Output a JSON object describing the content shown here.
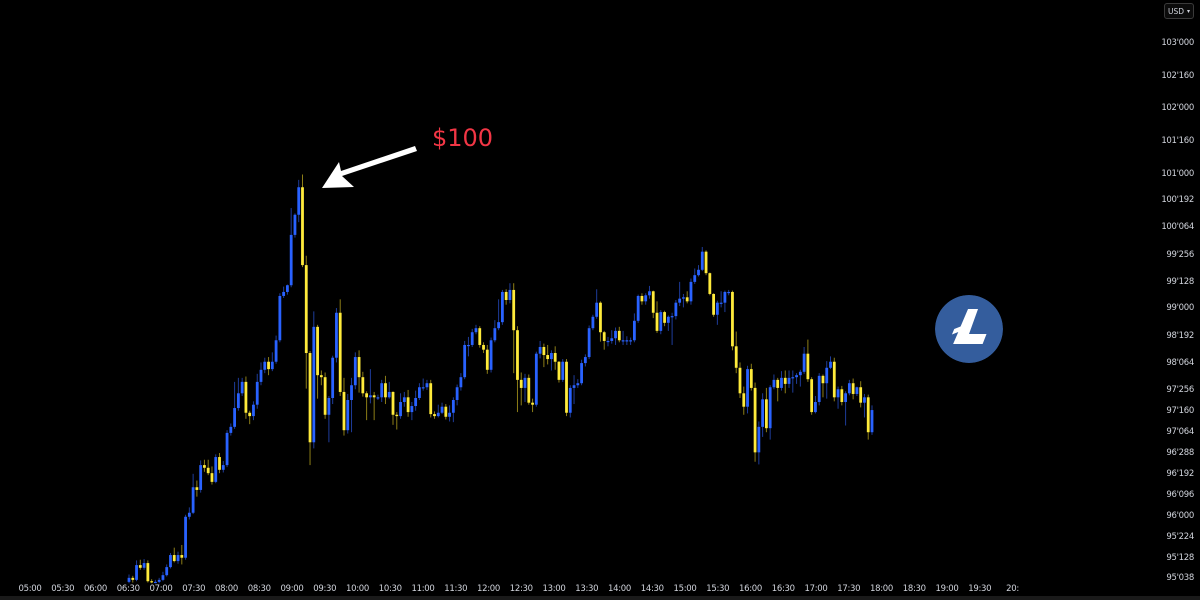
{
  "currency_selector": {
    "label": "USD",
    "icon": "chevron-down-icon"
  },
  "annotation": {
    "text": "$100",
    "color": "#f23645",
    "icon": "arrow-icon"
  },
  "logo": {
    "name": "litecoin-logo",
    "glyph": "Ł",
    "color": "#345d9d"
  },
  "colors": {
    "up": "#2962ff",
    "down": "#ffeb3b",
    "up_wick": "#1e3c9a",
    "down_wick": "#8c7d17",
    "background": "#000000",
    "text": "#d1d4dc"
  },
  "chart_data": {
    "type": "candlestick",
    "title": "",
    "xlabel": "",
    "ylabel": "",
    "grid": false,
    "ylim": [
      94900,
      103300
    ],
    "y_tick_labels": [
      "103'000",
      "102'160",
      "102'000",
      "101'160",
      "101'000",
      "100'192",
      "100'064",
      "99'256",
      "99'128",
      "99'000",
      "98'192",
      "98'064",
      "97'256",
      "97'160",
      "97'064",
      "96'288",
      "96'192",
      "96'096",
      "96'000",
      "95'224",
      "95'128",
      "95'038"
    ],
    "x_tick_labels": [
      "05:00",
      "05:30",
      "06:00",
      "06:30",
      "07:00",
      "07:30",
      "08:00",
      "08:30",
      "09:00",
      "09:30",
      "10:00",
      "10:30",
      "11:00",
      "11:30",
      "12:00",
      "12:30",
      "13:00",
      "13:30",
      "14:00",
      "14:30",
      "15:00",
      "15:30",
      "16:00",
      "16:30",
      "17:00",
      "17:30",
      "18:00",
      "18:30",
      "19:00",
      "19:30",
      "20:"
    ],
    "ohlc_fields": [
      "open",
      "high",
      "low",
      "close"
    ],
    "candles": [
      [
        94970,
        95080,
        94950,
        95030
      ],
      [
        95030,
        95060,
        94960,
        95000
      ],
      [
        95000,
        95290,
        94980,
        95220
      ],
      [
        95220,
        95300,
        95150,
        95180
      ],
      [
        95180,
        95310,
        95150,
        95250
      ],
      [
        95250,
        95290,
        94960,
        94980
      ],
      [
        94980,
        95010,
        94950,
        94970
      ],
      [
        94970,
        95000,
        94950,
        94970
      ],
      [
        94970,
        95030,
        94950,
        95000
      ],
      [
        95000,
        95120,
        94980,
        95070
      ],
      [
        95070,
        95230,
        95050,
        95190
      ],
      [
        95190,
        95400,
        95170,
        95370
      ],
      [
        95370,
        95480,
        95260,
        95280
      ],
      [
        95280,
        95420,
        95240,
        95370
      ],
      [
        95370,
        95520,
        95230,
        95330
      ],
      [
        95330,
        95970,
        95300,
        95940
      ],
      [
        95940,
        96080,
        95900,
        96000
      ],
      [
        96000,
        96580,
        95980,
        96380
      ],
      [
        96380,
        96480,
        96240,
        96340
      ],
      [
        96340,
        96780,
        96300,
        96710
      ],
      [
        96710,
        96790,
        96610,
        96670
      ],
      [
        96670,
        96790,
        96560,
        96590
      ],
      [
        96590,
        96690,
        96420,
        96460
      ],
      [
        96460,
        96870,
        96440,
        96830
      ],
      [
        96830,
        96890,
        96590,
        96640
      ],
      [
        96640,
        96770,
        96600,
        96710
      ],
      [
        96710,
        97230,
        96680,
        97190
      ],
      [
        97190,
        97330,
        97150,
        97280
      ],
      [
        97280,
        97950,
        97250,
        97560
      ],
      [
        97560,
        98010,
        97520,
        97780
      ],
      [
        97780,
        98010,
        97740,
        97950
      ],
      [
        97950,
        98030,
        97400,
        97490
      ],
      [
        97490,
        97520,
        97320,
        97440
      ],
      [
        97440,
        97660,
        97380,
        97610
      ],
      [
        97610,
        98070,
        97550,
        97950
      ],
      [
        97950,
        98240,
        97900,
        98130
      ],
      [
        98130,
        98310,
        98080,
        98250
      ],
      [
        98250,
        98320,
        98050,
        98140
      ],
      [
        98140,
        98390,
        98110,
        98250
      ],
      [
        98250,
        98640,
        98220,
        98570
      ],
      [
        98570,
        99270,
        98540,
        99230
      ],
      [
        99230,
        99370,
        99200,
        99290
      ],
      [
        99290,
        99400,
        99250,
        99390
      ],
      [
        99390,
        100540,
        99360,
        100140
      ],
      [
        100140,
        100460,
        100100,
        100440
      ],
      [
        100440,
        100960,
        100330,
        100850
      ],
      [
        100850,
        101040,
        99660,
        99690
      ],
      [
        99690,
        99830,
        97850,
        98380
      ],
      [
        98380,
        98410,
        96710,
        97050
      ],
      [
        97050,
        99000,
        96960,
        98770
      ],
      [
        98770,
        98800,
        97700,
        98050
      ],
      [
        98050,
        98120,
        97900,
        98020
      ],
      [
        98020,
        98090,
        97400,
        97460
      ],
      [
        97460,
        97740,
        97050,
        97710
      ],
      [
        97710,
        98340,
        97620,
        98310
      ],
      [
        98310,
        99050,
        98240,
        98980
      ],
      [
        98980,
        99180,
        97740,
        97800
      ],
      [
        97800,
        98010,
        97150,
        97230
      ],
      [
        97230,
        97770,
        97180,
        97680
      ],
      [
        97680,
        98010,
        97200,
        97900
      ],
      [
        97900,
        98390,
        97840,
        98320
      ],
      [
        98320,
        98420,
        97790,
        98020
      ],
      [
        98020,
        98100,
        97730,
        97780
      ],
      [
        97780,
        97810,
        97380,
        97720
      ],
      [
        97720,
        98140,
        97630,
        97750
      ],
      [
        97750,
        97800,
        97380,
        97720
      ],
      [
        97720,
        97760,
        97680,
        97720
      ],
      [
        97720,
        97980,
        97650,
        97930
      ],
      [
        97930,
        98040,
        97620,
        97720
      ],
      [
        97720,
        97950,
        97700,
        97800
      ],
      [
        97800,
        97810,
        97310,
        97460
      ],
      [
        97460,
        97500,
        97240,
        97440
      ],
      [
        97440,
        97780,
        97400,
        97650
      ],
      [
        97650,
        97800,
        97580,
        97720
      ],
      [
        97720,
        97830,
        97430,
        97500
      ],
      [
        97500,
        97650,
        97380,
        97590
      ],
      [
        97590,
        97820,
        97520,
        97710
      ],
      [
        97710,
        97930,
        97680,
        97870
      ],
      [
        97870,
        98000,
        97820,
        97870
      ],
      [
        97870,
        97980,
        97830,
        97930
      ],
      [
        97930,
        97980,
        97420,
        97470
      ],
      [
        97470,
        97510,
        97400,
        97440
      ],
      [
        97440,
        97610,
        97420,
        97490
      ],
      [
        97490,
        97640,
        97470,
        97580
      ],
      [
        97580,
        97620,
        97390,
        97430
      ],
      [
        97430,
        97600,
        97360,
        97490
      ],
      [
        97490,
        97720,
        97350,
        97680
      ],
      [
        97680,
        97910,
        97600,
        97870
      ],
      [
        97870,
        98080,
        97820,
        98020
      ],
      [
        98020,
        98560,
        97990,
        98500
      ],
      [
        98500,
        98620,
        98330,
        98500
      ],
      [
        98500,
        98740,
        98470,
        98690
      ],
      [
        98690,
        98800,
        98660,
        98750
      ],
      [
        98750,
        98780,
        98460,
        98500
      ],
      [
        98500,
        98540,
        98380,
        98430
      ],
      [
        98430,
        98500,
        98070,
        98130
      ],
      [
        98130,
        98610,
        98090,
        98570
      ],
      [
        98570,
        98870,
        98540,
        98750
      ],
      [
        98750,
        99180,
        98720,
        98840
      ],
      [
        98840,
        99320,
        98800,
        99290
      ],
      [
        99290,
        99330,
        99100,
        99170
      ],
      [
        99170,
        99420,
        99120,
        99320
      ],
      [
        99320,
        99420,
        98080,
        98720
      ],
      [
        98720,
        98780,
        97500,
        97980
      ],
      [
        97980,
        98090,
        97600,
        97860
      ],
      [
        97860,
        98070,
        97650,
        98010
      ],
      [
        98010,
        98060,
        97610,
        97640
      ],
      [
        97640,
        97700,
        97500,
        97610
      ],
      [
        97610,
        98400,
        97580,
        98370
      ],
      [
        98370,
        98560,
        98300,
        98470
      ],
      [
        98470,
        98520,
        98170,
        98350
      ],
      [
        98350,
        98500,
        98210,
        98290
      ],
      [
        98290,
        98420,
        98120,
        98380
      ],
      [
        98380,
        98480,
        98130,
        98250
      ],
      [
        98250,
        98260,
        97940,
        97980
      ],
      [
        97980,
        98290,
        97950,
        98250
      ],
      [
        98250,
        98290,
        97440,
        97490
      ],
      [
        97490,
        97900,
        97420,
        97860
      ],
      [
        97860,
        98050,
        97620,
        97900
      ],
      [
        97900,
        97990,
        97860,
        97930
      ],
      [
        97930,
        98280,
        97900,
        98230
      ],
      [
        98230,
        98360,
        98180,
        98320
      ],
      [
        98320,
        98790,
        98290,
        98750
      ],
      [
        98750,
        98950,
        98720,
        98920
      ],
      [
        98920,
        99330,
        98890,
        99130
      ],
      [
        99130,
        99150,
        98550,
        98690
      ],
      [
        98690,
        98710,
        98430,
        98560
      ],
      [
        98560,
        98620,
        98480,
        98560
      ],
      [
        98560,
        98720,
        98520,
        98600
      ],
      [
        98600,
        98760,
        98500,
        98710
      ],
      [
        98710,
        98770,
        98540,
        98570
      ],
      [
        98570,
        98710,
        98500,
        98570
      ],
      [
        98570,
        98630,
        98500,
        98570
      ],
      [
        98570,
        98610,
        98500,
        98570
      ],
      [
        98570,
        98970,
        98540,
        98860
      ],
      [
        98860,
        99250,
        98830,
        99230
      ],
      [
        99230,
        99270,
        99100,
        99150
      ],
      [
        99150,
        99270,
        99100,
        99240
      ],
      [
        99240,
        99380,
        99190,
        99300
      ],
      [
        99300,
        99310,
        98900,
        98980
      ],
      [
        98980,
        99150,
        98680,
        98710
      ],
      [
        98710,
        99020,
        98660,
        98990
      ],
      [
        98990,
        99010,
        98780,
        98830
      ],
      [
        98830,
        98940,
        98710,
        98920
      ],
      [
        98920,
        98980,
        98500,
        98930
      ],
      [
        98930,
        99170,
        98880,
        99130
      ],
      [
        99130,
        99440,
        99080,
        99190
      ],
      [
        99190,
        99260,
        99060,
        99210
      ],
      [
        99210,
        99300,
        99120,
        99150
      ],
      [
        99150,
        99490,
        99100,
        99440
      ],
      [
        99440,
        99640,
        99410,
        99540
      ],
      [
        99540,
        99690,
        99520,
        99620
      ],
      [
        99620,
        99960,
        99600,
        99890
      ],
      [
        99890,
        99910,
        99540,
        99570
      ],
      [
        99570,
        99580,
        99240,
        99260
      ],
      [
        99260,
        99270,
        98920,
        98950
      ],
      [
        98950,
        99160,
        98800,
        99130
      ],
      [
        99130,
        99300,
        99060,
        99130
      ],
      [
        99130,
        99310,
        98990,
        99290
      ],
      [
        99290,
        99320,
        99240,
        99290
      ],
      [
        99290,
        99310,
        98420,
        98480
      ],
      [
        98480,
        98700,
        98080,
        98160
      ],
      [
        98160,
        98240,
        97710,
        97780
      ],
      [
        97780,
        97880,
        97460,
        97580
      ],
      [
        97580,
        98190,
        97480,
        98140
      ],
      [
        98140,
        98220,
        97820,
        97860
      ],
      [
        97860,
        97940,
        96760,
        96900
      ],
      [
        96900,
        97360,
        96720,
        97280
      ],
      [
        97280,
        97780,
        97130,
        97690
      ],
      [
        97690,
        97860,
        97200,
        97260
      ],
      [
        97260,
        97900,
        97090,
        97870
      ],
      [
        97870,
        98060,
        97840,
        97980
      ],
      [
        97980,
        98010,
        97660,
        97860
      ],
      [
        97860,
        98110,
        97820,
        98010
      ],
      [
        98010,
        98120,
        97780,
        97920
      ],
      [
        97920,
        98120,
        97860,
        98010
      ],
      [
        98010,
        98120,
        97790,
        98020
      ],
      [
        98020,
        98080,
        97920,
        98050
      ],
      [
        98050,
        98130,
        97880,
        98100
      ],
      [
        98100,
        98470,
        98070,
        98370
      ],
      [
        98370,
        98580,
        97950,
        97990
      ],
      [
        97990,
        98020,
        97460,
        97500
      ],
      [
        97500,
        97740,
        97480,
        97650
      ],
      [
        97650,
        98080,
        97600,
        98040
      ],
      [
        98040,
        98060,
        97720,
        97930
      ],
      [
        97930,
        98260,
        97700,
        98160
      ],
      [
        98160,
        98330,
        98140,
        98250
      ],
      [
        98250,
        98310,
        97660,
        97720
      ],
      [
        97720,
        97880,
        97550,
        97840
      ],
      [
        97840,
        97890,
        97600,
        97650
      ],
      [
        97650,
        97810,
        97300,
        97780
      ],
      [
        97780,
        97980,
        97750,
        97930
      ],
      [
        97930,
        98000,
        97690,
        97770
      ],
      [
        97770,
        97880,
        97740,
        97870
      ],
      [
        97870,
        97960,
        97570,
        97640
      ],
      [
        97640,
        97770,
        97420,
        97720
      ],
      [
        97720,
        97760,
        97090,
        97200
      ],
      [
        97200,
        97600,
        97160,
        97530
      ]
    ]
  }
}
